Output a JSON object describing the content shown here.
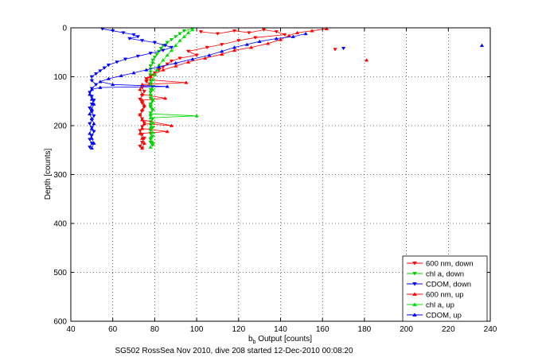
{
  "chart_data": {
    "type": "scatter",
    "title": "",
    "xlabel": "b",
    "xlabel_sub": "b",
    "xlabel_rest": " Output [counts]",
    "ylabel": "Depth [counts]",
    "caption": "SG502 RossSea Nov 2010, dive 208 started 12-Dec-2010 00:08:20",
    "xlim": [
      40,
      240
    ],
    "ylim": [
      0,
      600
    ],
    "y_reversed": true,
    "grid": true,
    "grid_style": "dotted",
    "legend_position": "bottom-right",
    "xticks": [
      40,
      60,
      80,
      100,
      120,
      140,
      160,
      180,
      200,
      220,
      240
    ],
    "yticks": [
      0,
      100,
      200,
      300,
      400,
      500,
      600
    ],
    "series": [
      {
        "name": "600 nm, down",
        "color": "#ff0000",
        "marker": "triangle-down",
        "connected": true,
        "points": [
          [
            102,
            8
          ],
          [
            110,
            12
          ],
          [
            118,
            6
          ],
          [
            125,
            10
          ],
          [
            132,
            4
          ],
          [
            138,
            8
          ],
          [
            142,
            14
          ],
          [
            128,
            20
          ],
          [
            120,
            26
          ],
          [
            112,
            34
          ],
          [
            105,
            40
          ],
          [
            96,
            48
          ],
          [
            100,
            56
          ],
          [
            92,
            62
          ],
          [
            88,
            68
          ],
          [
            86,
            74
          ],
          [
            84,
            80
          ],
          [
            82,
            86
          ],
          [
            80,
            92
          ],
          [
            78,
            98
          ],
          [
            76,
            104
          ],
          [
            76,
            110
          ],
          [
            78,
            116
          ],
          [
            74,
            122
          ],
          [
            75,
            130
          ],
          [
            74,
            138
          ],
          [
            73,
            146
          ],
          [
            74,
            154
          ],
          [
            75,
            162
          ],
          [
            74,
            170
          ],
          [
            73,
            178
          ],
          [
            74,
            186
          ],
          [
            75,
            194
          ],
          [
            74,
            202
          ],
          [
            73,
            210
          ],
          [
            74,
            218
          ],
          [
            75,
            226
          ],
          [
            74,
            234
          ],
          [
            73,
            242
          ],
          [
            74,
            246
          ]
        ]
      },
      {
        "name": "chl a, down",
        "color": "#00cc00",
        "marker": "triangle-down",
        "connected": true,
        "points": [
          [
            98,
            2
          ],
          [
            94,
            6
          ],
          [
            92,
            12
          ],
          [
            90,
            18
          ],
          [
            88,
            24
          ],
          [
            86,
            30
          ],
          [
            84,
            36
          ],
          [
            83,
            42
          ],
          [
            82,
            48
          ],
          [
            81,
            54
          ],
          [
            80,
            60
          ],
          [
            79,
            66
          ],
          [
            79,
            72
          ],
          [
            78,
            78
          ],
          [
            78,
            84
          ],
          [
            78,
            90
          ],
          [
            78,
            96
          ],
          [
            78,
            102
          ],
          [
            78,
            108
          ],
          [
            78,
            114
          ],
          [
            79,
            120
          ],
          [
            78,
            126
          ],
          [
            78,
            132
          ],
          [
            78,
            138
          ],
          [
            78,
            144
          ],
          [
            79,
            150
          ],
          [
            78,
            156
          ],
          [
            78,
            162
          ],
          [
            79,
            168
          ],
          [
            78,
            174
          ],
          [
            78,
            180
          ],
          [
            79,
            186
          ],
          [
            78,
            192
          ],
          [
            78,
            198
          ],
          [
            79,
            204
          ],
          [
            78,
            210
          ],
          [
            78,
            216
          ],
          [
            79,
            222
          ],
          [
            78,
            228
          ],
          [
            78,
            234
          ],
          [
            79,
            240
          ]
        ]
      },
      {
        "name": "CDOM, down",
        "color": "#0000ff",
        "marker": "triangle-down",
        "connected": true,
        "points": [
          [
            55,
            2
          ],
          [
            60,
            6
          ],
          [
            65,
            10
          ],
          [
            70,
            14
          ],
          [
            72,
            18
          ],
          [
            68,
            22
          ],
          [
            74,
            26
          ],
          [
            80,
            30
          ],
          [
            85,
            36
          ],
          [
            88,
            40
          ],
          [
            84,
            46
          ],
          [
            78,
            52
          ],
          [
            72,
            58
          ],
          [
            66,
            64
          ],
          [
            62,
            70
          ],
          [
            58,
            76
          ],
          [
            56,
            82
          ],
          [
            54,
            88
          ],
          [
            52,
            94
          ],
          [
            50,
            100
          ],
          [
            50,
            108
          ],
          [
            52,
            116
          ],
          [
            50,
            124
          ],
          [
            49,
            132
          ],
          [
            50,
            140
          ],
          [
            51,
            148
          ],
          [
            50,
            156
          ],
          [
            49,
            164
          ],
          [
            50,
            172
          ],
          [
            51,
            180
          ],
          [
            50,
            188
          ],
          [
            49,
            196
          ],
          [
            50,
            204
          ],
          [
            51,
            212
          ],
          [
            50,
            220
          ],
          [
            49,
            228
          ],
          [
            50,
            236
          ],
          [
            49,
            244
          ]
        ]
      },
      {
        "name": "600 nm, up",
        "color": "#ff0000",
        "marker": "triangle-up",
        "connected": true,
        "points": [
          [
            74,
            246
          ],
          [
            75,
            236
          ],
          [
            74,
            226
          ],
          [
            73,
            216
          ],
          [
            86,
            212
          ],
          [
            74,
            206
          ],
          [
            75,
            196
          ],
          [
            88,
            200
          ],
          [
            74,
            188
          ],
          [
            73,
            178
          ],
          [
            74,
            168
          ],
          [
            75,
            158
          ],
          [
            74,
            148
          ],
          [
            85,
            144
          ],
          [
            74,
            136
          ],
          [
            73,
            126
          ],
          [
            74,
            116
          ],
          [
            95,
            112
          ],
          [
            76,
            106
          ],
          [
            78,
            100
          ],
          [
            80,
            94
          ],
          [
            84,
            86
          ],
          [
            90,
            78
          ],
          [
            96,
            70
          ],
          [
            104,
            62
          ],
          [
            112,
            54
          ],
          [
            118,
            46
          ],
          [
            126,
            40
          ],
          [
            134,
            32
          ],
          [
            140,
            24
          ],
          [
            144,
            16
          ],
          [
            148,
            10
          ],
          [
            155,
            6
          ],
          [
            162,
            2
          ]
        ]
      },
      {
        "name": "chl a, up",
        "color": "#00dd00",
        "marker": "triangle-up",
        "connected": true,
        "points": [
          [
            78,
            244
          ],
          [
            79,
            234
          ],
          [
            78,
            224
          ],
          [
            79,
            214
          ],
          [
            78,
            204
          ],
          [
            79,
            194
          ],
          [
            78,
            184
          ],
          [
            100,
            180
          ],
          [
            78,
            176
          ],
          [
            79,
            166
          ],
          [
            78,
            156
          ],
          [
            79,
            146
          ],
          [
            78,
            136
          ],
          [
            79,
            126
          ],
          [
            78,
            116
          ],
          [
            79,
            106
          ],
          [
            80,
            96
          ],
          [
            81,
            86
          ],
          [
            82,
            76
          ],
          [
            84,
            66
          ],
          [
            86,
            56
          ],
          [
            88,
            46
          ],
          [
            90,
            36
          ],
          [
            92,
            26
          ],
          [
            94,
            18
          ],
          [
            96,
            10
          ],
          [
            98,
            4
          ]
        ]
      },
      {
        "name": "CDOM, up",
        "color": "#0000ff",
        "marker": "triangle-up",
        "connected": true,
        "points": [
          [
            50,
            246
          ],
          [
            51,
            236
          ],
          [
            50,
            226
          ],
          [
            49,
            216
          ],
          [
            50,
            206
          ],
          [
            51,
            196
          ],
          [
            50,
            186
          ],
          [
            49,
            176
          ],
          [
            50,
            166
          ],
          [
            51,
            156
          ],
          [
            50,
            146
          ],
          [
            49,
            136
          ],
          [
            50,
            126
          ],
          [
            54,
            122
          ],
          [
            86,
            120
          ],
          [
            60,
            116
          ],
          [
            54,
            110
          ],
          [
            58,
            104
          ],
          [
            64,
            98
          ],
          [
            70,
            92
          ],
          [
            76,
            86
          ],
          [
            82,
            80
          ],
          [
            90,
            72
          ],
          [
            98,
            64
          ],
          [
            106,
            56
          ],
          [
            112,
            48
          ],
          [
            118,
            40
          ],
          [
            124,
            34
          ],
          [
            130,
            28
          ],
          [
            138,
            22
          ],
          [
            146,
            18
          ],
          [
            152,
            12
          ]
        ]
      }
    ],
    "outliers": [
      {
        "series": "CDOM, up",
        "x": 236,
        "y": 36
      },
      {
        "series": "CDOM, down",
        "x": 170,
        "y": 42
      },
      {
        "series": "600 nm, up",
        "x": 181,
        "y": 66
      },
      {
        "series": "600 nm, down",
        "x": 166,
        "y": 44
      }
    ]
  }
}
